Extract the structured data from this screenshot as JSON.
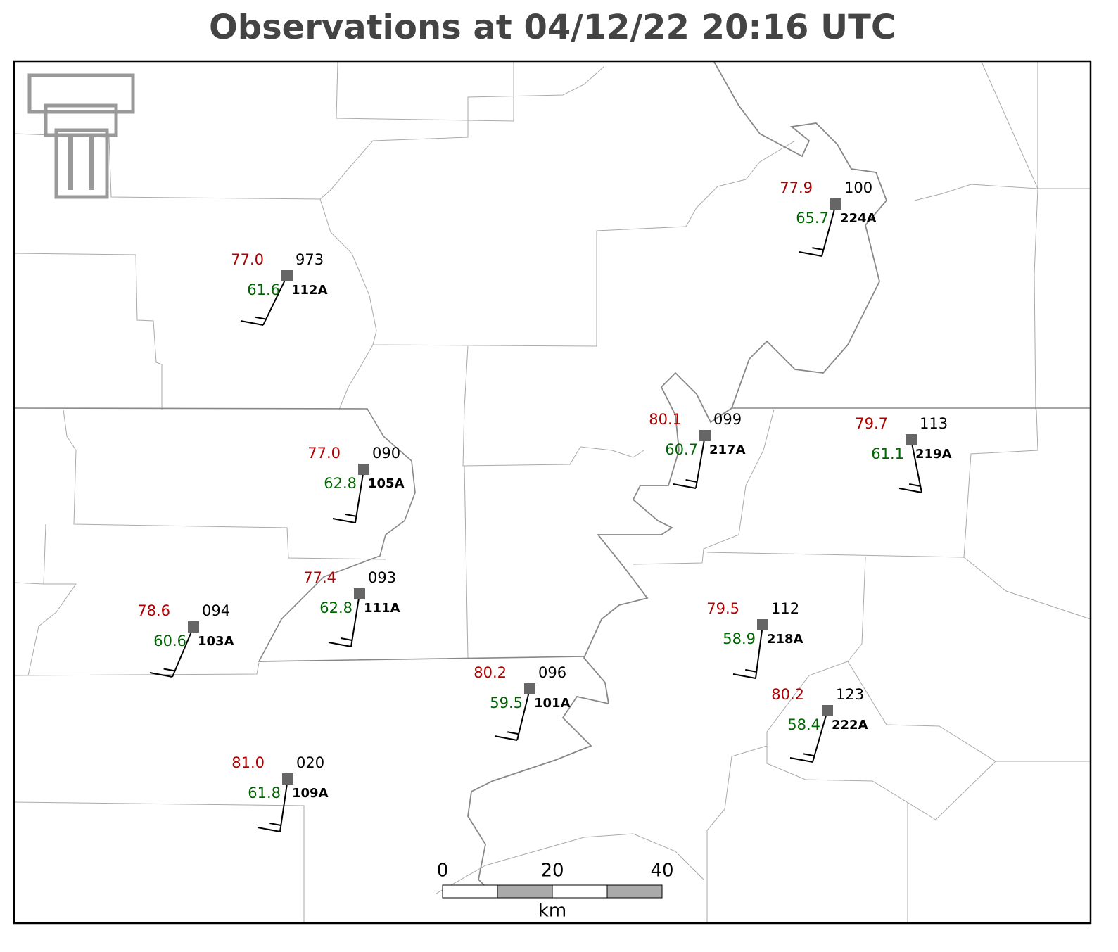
{
  "title": "Observations at 04/12/22 20:16 UTC",
  "stations": [
    {
      "id": "112A",
      "temperature": "77.0",
      "dewpoint": "61.6",
      "pressure": "973"
    },
    {
      "id": "224A",
      "temperature": "77.9",
      "dewpoint": "65.7",
      "pressure": "100"
    },
    {
      "id": "217A",
      "temperature": "80.1",
      "dewpoint": "60.7",
      "pressure": "099"
    },
    {
      "id": "219A",
      "temperature": "79.7",
      "dewpoint": "61.1",
      "pressure": "113"
    },
    {
      "id": "105A",
      "temperature": "77.0",
      "dewpoint": "62.8",
      "pressure": "090"
    },
    {
      "id": "111A",
      "temperature": "77.4",
      "dewpoint": "62.8",
      "pressure": "093"
    },
    {
      "id": "103A",
      "temperature": "78.6",
      "dewpoint": "60.6",
      "pressure": "094"
    },
    {
      "id": "218A",
      "temperature": "79.5",
      "dewpoint": "58.9",
      "pressure": "112"
    },
    {
      "id": "101A",
      "temperature": "80.2",
      "dewpoint": "59.5",
      "pressure": "096"
    },
    {
      "id": "222A",
      "temperature": "80.2",
      "dewpoint": "58.4",
      "pressure": "123"
    },
    {
      "id": "109A",
      "temperature": "81.0",
      "dewpoint": "61.8",
      "pressure": "020"
    }
  ],
  "scale_bar": {
    "labels": [
      "0",
      "20",
      "40"
    ],
    "unit": "km"
  }
}
